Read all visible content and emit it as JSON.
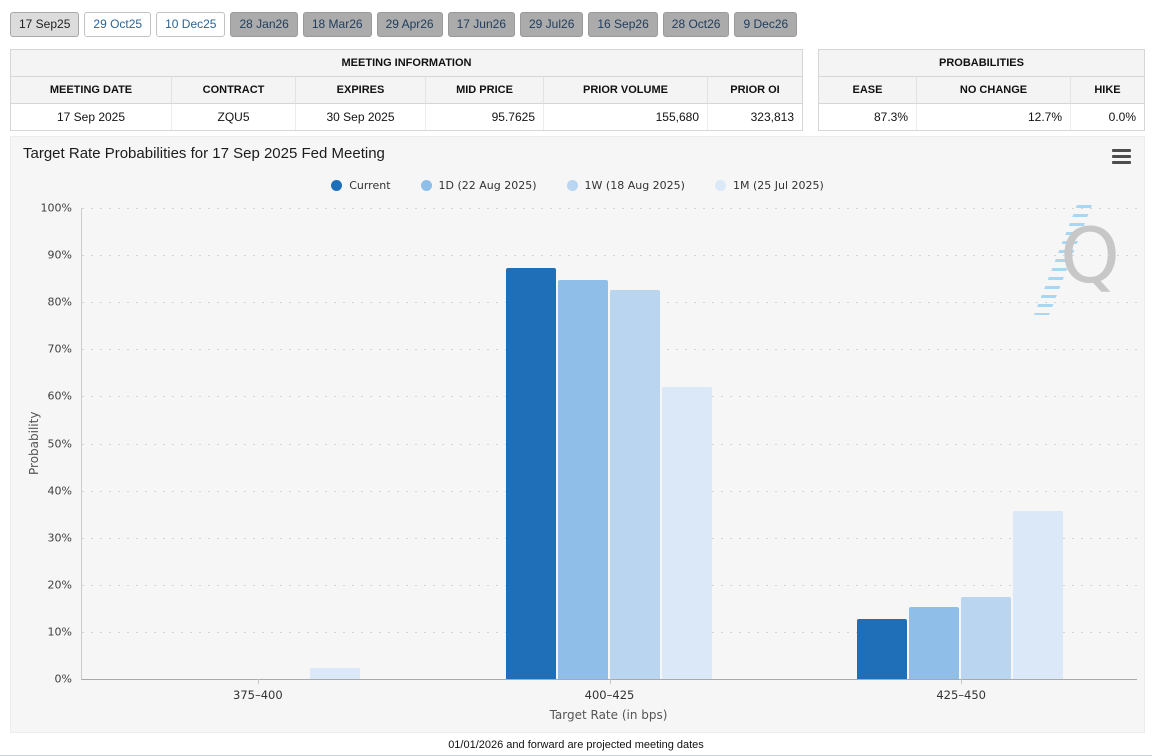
{
  "tabs": [
    {
      "label": "17 Sep25",
      "state": "selected"
    },
    {
      "label": "29 Oct25",
      "state": "active"
    },
    {
      "label": "10 Dec25",
      "state": "active"
    },
    {
      "label": "28 Jan26",
      "state": "projected"
    },
    {
      "label": "18 Mar26",
      "state": "projected"
    },
    {
      "label": "29 Apr26",
      "state": "projected"
    },
    {
      "label": "17 Jun26",
      "state": "projected"
    },
    {
      "label": "29 Jul26",
      "state": "projected"
    },
    {
      "label": "16 Sep26",
      "state": "projected"
    },
    {
      "label": "28 Oct26",
      "state": "projected"
    },
    {
      "label": "9 Dec26",
      "state": "projected"
    }
  ],
  "meeting_info": {
    "title": "MEETING INFORMATION",
    "columns": [
      "MEETING DATE",
      "CONTRACT",
      "EXPIRES",
      "MID PRICE",
      "PRIOR VOLUME",
      "PRIOR OI"
    ],
    "align": [
      "center",
      "center",
      "center",
      "right",
      "right",
      "right"
    ],
    "row": [
      "17 Sep 2025",
      "ZQU5",
      "30 Sep 2025",
      "95.7625",
      "155,680",
      "323,813"
    ]
  },
  "probabilities": {
    "title": "PROBABILITIES",
    "columns": [
      "EASE",
      "NO CHANGE",
      "HIKE"
    ],
    "align": [
      "right",
      "right",
      "right"
    ],
    "row": [
      "87.3%",
      "12.7%",
      "0.0%"
    ]
  },
  "chart_data": {
    "type": "bar",
    "title": "Target Rate Probabilities for 17 Sep 2025 Fed Meeting",
    "xlabel": "Target Rate (in bps)",
    "ylabel": "Probability",
    "categories": [
      "375–400",
      "400–425",
      "425–450"
    ],
    "series": [
      {
        "name": "Current",
        "color": "#1e6fb8",
        "values": [
          0,
          87.3,
          12.7
        ]
      },
      {
        "name": "1D (22 Aug 2025)",
        "color": "#8fbee8",
        "values": [
          0,
          84.8,
          15.3
        ]
      },
      {
        "name": "1W (18 Aug 2025)",
        "color": "#b9d5ef",
        "values": [
          0,
          82.6,
          17.4
        ]
      },
      {
        "name": "1M (25 Jul 2025)",
        "color": "#dbe8f8",
        "values": [
          2.4,
          62.0,
          35.7
        ]
      }
    ],
    "ylim": [
      0,
      100
    ],
    "ytick_step": 10,
    "ytick_labels": [
      "0%",
      "10%",
      "20%",
      "30%",
      "40%",
      "50%",
      "60%",
      "70%",
      "80%",
      "90%",
      "100%"
    ],
    "grid": "dotted horizontal",
    "legend_position": "top center"
  },
  "watermark": {
    "letter": "Q",
    "name": "quikstrike-logo"
  },
  "footer": {
    "note": "01/01/2026 and forward are projected meeting dates"
  }
}
